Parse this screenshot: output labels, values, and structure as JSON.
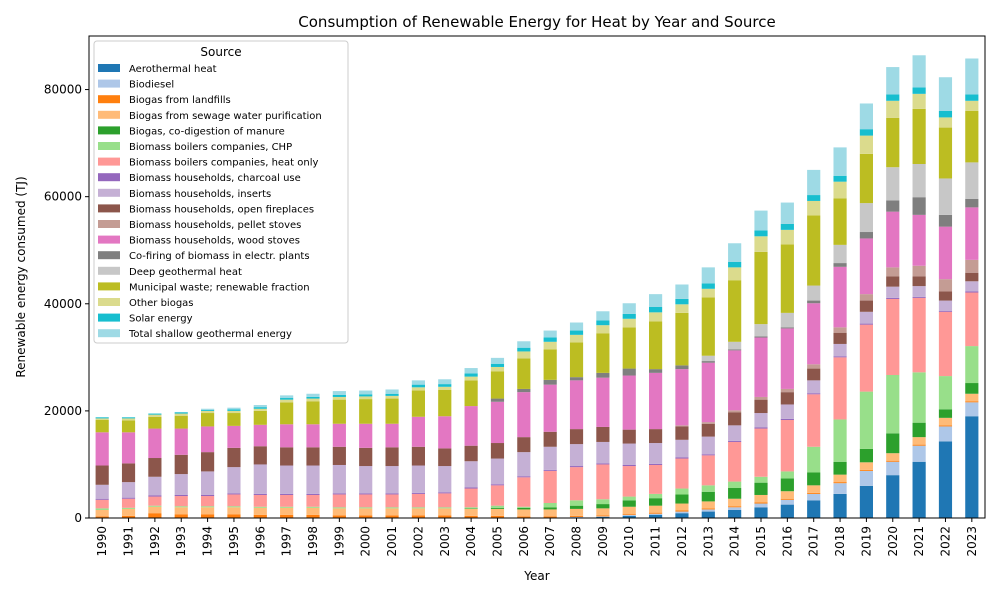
{
  "chart_data": {
    "type": "bar",
    "stacked": true,
    "title": "Consumption of Renewable Energy for Heat by Year and Source",
    "xlabel": "Year",
    "ylabel": "Renewable energy consumed (TJ)",
    "ylim": [
      0,
      90000
    ],
    "yticks": [
      0,
      20000,
      40000,
      60000,
      80000
    ],
    "grid": false,
    "legend": {
      "title": "Source",
      "placement": "top-left"
    },
    "categories": [
      "1990",
      "1991",
      "1992",
      "1993",
      "1994",
      "1995",
      "1996",
      "1997",
      "1998",
      "1999",
      "2000",
      "2001",
      "2002",
      "2003",
      "2004",
      "2005",
      "2006",
      "2007",
      "2008",
      "2009",
      "2010",
      "2011",
      "2012",
      "2013",
      "2014",
      "2015",
      "2016",
      "2017",
      "2018",
      "2019",
      "2020",
      "2021",
      "2022",
      "2023"
    ],
    "series": [
      {
        "name": "Aerothermal heat",
        "color": "#1f77b4",
        "values": [
          0,
          0,
          0,
          0,
          0,
          0,
          0,
          0,
          0,
          0,
          0,
          0,
          0,
          0,
          0,
          0,
          0,
          0,
          100,
          200,
          400,
          600,
          900,
          1200,
          1500,
          2000,
          2500,
          3300,
          4500,
          6000,
          8000,
          10500,
          14300,
          19000
        ]
      },
      {
        "name": "Biodiesel",
        "color": "#aec7e8",
        "values": [
          0,
          0,
          0,
          0,
          0,
          0,
          0,
          0,
          0,
          0,
          0,
          0,
          0,
          0,
          0,
          0,
          0,
          0,
          100,
          100,
          200,
          200,
          300,
          400,
          500,
          700,
          900,
          1200,
          2000,
          2800,
          2500,
          3000,
          2800,
          2600
        ]
      },
      {
        "name": "Biogas from landfills",
        "color": "#ff7f0e",
        "values": [
          300,
          400,
          900,
          700,
          700,
          700,
          600,
          600,
          600,
          500,
          500,
          500,
          500,
          500,
          400,
          400,
          300,
          300,
          200,
          200,
          200,
          200,
          200,
          200,
          200,
          200,
          200,
          200,
          200,
          200,
          200,
          200,
          200,
          200
        ]
      },
      {
        "name": "Biogas from sewage water purification",
        "color": "#ffbb78",
        "values": [
          1200,
          1300,
          1200,
          1300,
          1300,
          1300,
          1300,
          1300,
          1300,
          1300,
          1300,
          1300,
          1300,
          1300,
          1300,
          1300,
          1300,
          1300,
          1300,
          1300,
          1300,
          1300,
          1300,
          1300,
          1400,
          1400,
          1400,
          1400,
          1400,
          1400,
          1400,
          1400,
          1400,
          1400
        ]
      },
      {
        "name": "Biogas, co-digestion of manure",
        "color": "#2ca02c",
        "values": [
          0,
          0,
          0,
          0,
          0,
          0,
          0,
          0,
          0,
          0,
          0,
          0,
          0,
          0,
          100,
          200,
          300,
          400,
          600,
          800,
          1200,
          1400,
          1700,
          1800,
          2000,
          2300,
          2400,
          2400,
          2400,
          2500,
          3700,
          2700,
          1600,
          2000
        ]
      },
      {
        "name": "Biomass boilers companies, CHP",
        "color": "#98df8a",
        "values": [
          300,
          200,
          200,
          200,
          200,
          200,
          200,
          200,
          200,
          200,
          200,
          200,
          200,
          200,
          200,
          400,
          200,
          800,
          1000,
          900,
          700,
          800,
          1100,
          1200,
          1200,
          1100,
          1300,
          4800,
          7900,
          10700,
          10900,
          9400,
          6200,
          6900
        ]
      },
      {
        "name": "Biomass boilers companies, heat only",
        "color": "#ff9896",
        "values": [
          1600,
          1700,
          1700,
          1900,
          1900,
          2200,
          2200,
          2200,
          2200,
          2400,
          2400,
          2400,
          2500,
          2600,
          3500,
          3800,
          5500,
          6000,
          6200,
          6500,
          5700,
          5400,
          5600,
          5600,
          7400,
          9000,
          9600,
          9800,
          11600,
          12500,
          14200,
          13900,
          12000,
          10000
        ]
      },
      {
        "name": "Biomass households, charcoal use",
        "color": "#9467bd",
        "values": [
          200,
          200,
          200,
          200,
          200,
          200,
          200,
          200,
          200,
          200,
          200,
          200,
          200,
          200,
          200,
          200,
          200,
          200,
          200,
          200,
          200,
          200,
          200,
          200,
          200,
          200,
          200,
          200,
          200,
          200,
          200,
          200,
          200,
          200
        ]
      },
      {
        "name": "Biomass households, inserts",
        "color": "#c5b0d5",
        "values": [
          2600,
          2900,
          3500,
          3900,
          4400,
          4900,
          5500,
          5300,
          5300,
          5300,
          5100,
          5100,
          5100,
          4900,
          4900,
          4800,
          4500,
          4300,
          4100,
          4000,
          4000,
          3900,
          3300,
          3300,
          2900,
          2700,
          2700,
          2400,
          2300,
          2200,
          2100,
          2000,
          1900,
          1900
        ]
      },
      {
        "name": "Biomass households, open fireplaces",
        "color": "#8c564b",
        "values": [
          3600,
          3500,
          3500,
          3600,
          3600,
          3600,
          3400,
          3400,
          3400,
          3400,
          3400,
          3500,
          3500,
          3300,
          2900,
          2900,
          2800,
          2800,
          2800,
          2800,
          2600,
          2600,
          2500,
          2400,
          2400,
          2500,
          2300,
          2200,
          2100,
          2100,
          1900,
          1800,
          1700,
          1600
        ]
      },
      {
        "name": "Biomass households, pellet stoves",
        "color": "#c49c94",
        "values": [
          0,
          0,
          0,
          0,
          0,
          0,
          0,
          0,
          0,
          0,
          0,
          0,
          0,
          0,
          0,
          0,
          0,
          0,
          0,
          0,
          0,
          0,
          200,
          300,
          400,
          500,
          600,
          800,
          1000,
          1200,
          1700,
          2000,
          2300,
          2400
        ]
      },
      {
        "name": "Biomass households, wood stoves",
        "color": "#e377c2",
        "values": [
          6200,
          5800,
          5500,
          4900,
          4800,
          4100,
          4000,
          4300,
          4300,
          4300,
          4500,
          4400,
          5600,
          6000,
          7400,
          7700,
          8400,
          8800,
          9100,
          9200,
          10100,
          10500,
          10500,
          11100,
          11200,
          11100,
          11300,
          11400,
          11300,
          10400,
          10400,
          9500,
          9800,
          9800
        ]
      },
      {
        "name": "Co-firing of biomass in electr. plants",
        "color": "#7f7f7f",
        "values": [
          0,
          0,
          0,
          0,
          0,
          0,
          0,
          0,
          0,
          0,
          0,
          0,
          0,
          0,
          0,
          600,
          600,
          900,
          600,
          900,
          1300,
          700,
          700,
          300,
          200,
          200,
          200,
          500,
          700,
          1200,
          2100,
          3300,
          2200,
          1600
        ]
      },
      {
        "name": "Deep geothermal heat",
        "color": "#c7c7c7",
        "values": [
          0,
          0,
          0,
          0,
          0,
          0,
          0,
          0,
          0,
          0,
          0,
          0,
          0,
          0,
          0,
          0,
          0,
          0,
          0,
          0,
          0,
          0,
          0,
          1000,
          1400,
          2300,
          2700,
          2800,
          3400,
          5400,
          6200,
          6200,
          6800,
          6800
        ]
      },
      {
        "name": "Municipal waste; renewable fraction",
        "color": "#bcbd22",
        "values": [
          2300,
          2200,
          2200,
          2400,
          2500,
          2400,
          2600,
          4100,
          4300,
          4500,
          4600,
          4700,
          4900,
          4900,
          4800,
          5100,
          5700,
          5700,
          6500,
          7400,
          7700,
          8900,
          9800,
          10900,
          11500,
          13500,
          12800,
          13100,
          8700,
          9200,
          9200,
          10300,
          9500,
          9600
        ]
      },
      {
        "name": "Other biogas",
        "color": "#dbdb8d",
        "values": [
          300,
          400,
          400,
          400,
          400,
          400,
          400,
          500,
          500,
          500,
          500,
          500,
          600,
          600,
          700,
          800,
          1300,
          1400,
          1400,
          1500,
          1600,
          1700,
          1600,
          1600,
          2400,
          2900,
          2700,
          2700,
          3100,
          3400,
          3200,
          2800,
          1900,
          1900
        ]
      },
      {
        "name": "Solar energy",
        "color": "#17becf",
        "values": [
          200,
          200,
          200,
          200,
          200,
          300,
          300,
          300,
          300,
          400,
          400,
          400,
          500,
          500,
          600,
          600,
          700,
          800,
          800,
          900,
          900,
          1000,
          1000,
          1000,
          1000,
          1100,
          1100,
          1100,
          1100,
          1200,
          1200,
          1200,
          1200,
          1200
        ]
      },
      {
        "name": "Total shallow geothermal energy",
        "color": "#9edae5",
        "values": [
          0,
          0,
          0,
          100,
          200,
          300,
          400,
          500,
          600,
          700,
          700,
          800,
          800,
          900,
          1000,
          1100,
          1200,
          1300,
          1500,
          1700,
          2000,
          2400,
          2700,
          3000,
          3500,
          3700,
          4000,
          4700,
          5300,
          4800,
          5100,
          6000,
          6300,
          6700
        ]
      }
    ]
  }
}
